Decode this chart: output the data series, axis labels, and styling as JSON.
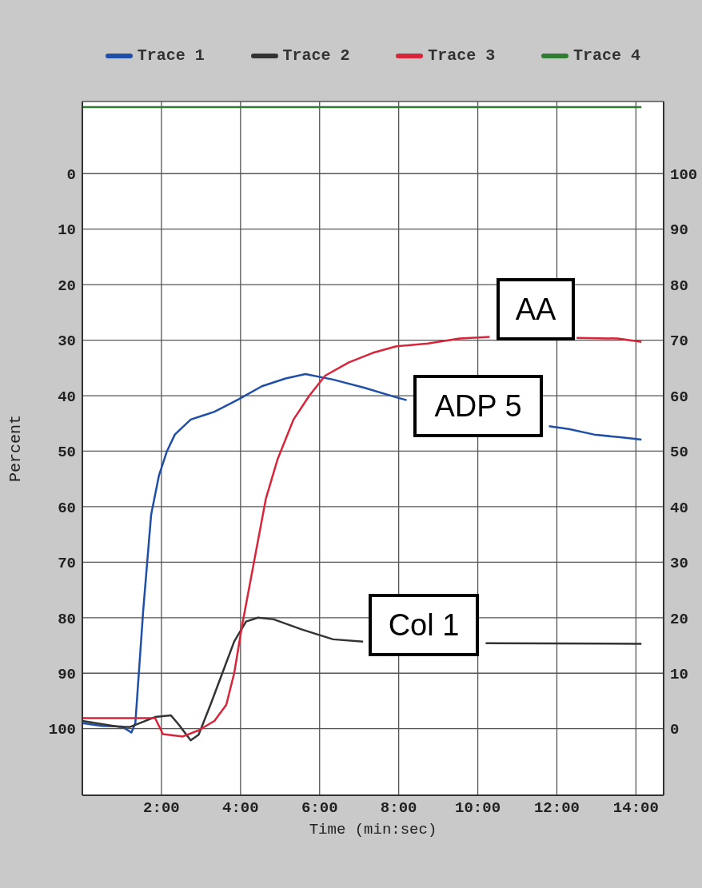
{
  "chart_data": {
    "type": "line",
    "xlabel": "Time (min:sec)",
    "ylabel": "Percent",
    "xlim": [
      0,
      14.7
    ],
    "xticks": [
      {
        "value": 2,
        "label": "2:00"
      },
      {
        "value": 4,
        "label": "4:00"
      },
      {
        "value": 6,
        "label": "6:00"
      },
      {
        "value": 8,
        "label": "8:00"
      },
      {
        "value": 10,
        "label": "10:00"
      },
      {
        "value": 12,
        "label": "12:00"
      },
      {
        "value": 14,
        "label": "14:00"
      }
    ],
    "ylim": [
      112,
      -13
    ],
    "yticks": [
      0,
      10,
      20,
      30,
      40,
      50,
      60,
      70,
      80,
      90,
      100
    ],
    "y2lim": [
      -12,
      113
    ],
    "y2ticks": [
      0,
      10,
      20,
      30,
      40,
      50,
      60,
      70,
      80,
      90,
      100
    ],
    "grid": true,
    "legend": "top",
    "marker": "none",
    "line_style": "solid",
    "series": [
      {
        "name": "Trace 1",
        "color": "#1f4fa8",
        "x": [
          0,
          0.5,
          1.0,
          1.24,
          1.34,
          1.54,
          1.74,
          1.94,
          2.14,
          2.34,
          2.74,
          3.34,
          3.94,
          4.54,
          5.14,
          5.64,
          6.34,
          7.14,
          7.94,
          8.2,
          9.9,
          11.8,
          12.3,
          12.94,
          13.6,
          14.14
        ],
        "values": [
          99,
          99.5,
          99.6,
          100.7,
          99,
          78.6,
          61.4,
          54.3,
          50,
          47,
          44.3,
          42.9,
          40.7,
          38.3,
          36.9,
          36.1,
          37.1,
          38.6,
          40.3,
          40.8,
          null,
          45.5,
          46,
          47,
          47.5,
          47.9
        ]
      },
      {
        "name": "Trace 2",
        "color": "#333333",
        "x": [
          0,
          0.94,
          1.2,
          1.84,
          2.24,
          2.44,
          2.74,
          2.94,
          3.24,
          3.54,
          3.84,
          4.14,
          4.44,
          4.84,
          5.54,
          6.34,
          7.1,
          8.5,
          10.2,
          14.14
        ],
        "values": [
          98.6,
          99.7,
          99.7,
          97.9,
          97.6,
          99.3,
          102.1,
          101.1,
          95.7,
          90,
          84.3,
          80.7,
          80,
          80.3,
          82.1,
          83.9,
          84.3,
          null,
          84.6,
          84.7
        ]
      },
      {
        "name": "Trace 3",
        "color": "#d8253a",
        "x": [
          0,
          1.0,
          1.84,
          2.04,
          2.54,
          2.94,
          3.34,
          3.64,
          3.84,
          4.04,
          4.34,
          4.64,
          4.94,
          5.34,
          5.74,
          6.14,
          6.74,
          7.34,
          7.94,
          8.74,
          9.54,
          10.3,
          11.3,
          12.5,
          13.54,
          14.14
        ],
        "values": [
          98.1,
          98.1,
          98.1,
          101,
          101.4,
          100.3,
          98.6,
          95.7,
          90,
          81.4,
          70,
          58.6,
          51.4,
          44.3,
          40,
          36.4,
          34,
          32.3,
          31.1,
          30.6,
          29.7,
          29.4,
          null,
          29.6,
          29.7,
          30.3
        ]
      },
      {
        "name": "Trace 4",
        "color": "#2e7d32",
        "x": [
          0,
          14.14
        ],
        "values": [
          -12,
          -12
        ]
      }
    ],
    "annotations": [
      "AA",
      "ADP 5",
      "Col 1"
    ]
  }
}
